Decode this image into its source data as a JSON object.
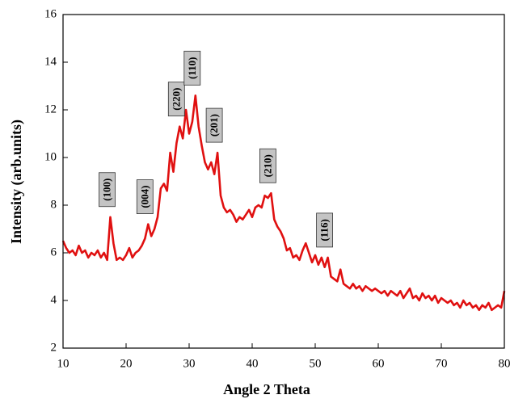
{
  "chart_data": {
    "type": "line",
    "x_label": "Angle 2 Theta",
    "y_label": "Intensity (arb.units)",
    "color": "#e01010",
    "xlim": [
      10,
      80
    ],
    "xticks": [
      10,
      20,
      30,
      40,
      50,
      60,
      70,
      80
    ],
    "ylim": [
      2,
      16
    ],
    "yticks": [
      2,
      4,
      6,
      8,
      10,
      12,
      14,
      16
    ],
    "x": [
      10,
      10.5,
      11,
      11.5,
      12,
      12.5,
      13,
      13.5,
      14,
      14.5,
      15,
      15.5,
      16,
      16.5,
      17,
      17.5,
      18,
      18.5,
      19,
      19.5,
      20,
      20.5,
      21,
      21.5,
      22,
      22.5,
      23,
      23.5,
      24,
      24.5,
      25,
      25.5,
      26,
      26.5,
      27,
      27.5,
      28,
      28.5,
      29,
      29.5,
      30,
      30.5,
      31,
      31.5,
      32,
      32.5,
      33,
      33.5,
      34,
      34.5,
      35,
      35.5,
      36,
      36.5,
      37,
      37.5,
      38,
      38.5,
      39,
      39.5,
      40,
      40.5,
      41,
      41.5,
      42,
      42.5,
      43,
      43.5,
      44,
      44.5,
      45,
      45.5,
      46,
      46.5,
      47,
      47.5,
      48,
      48.5,
      49,
      49.5,
      50,
      50.5,
      51,
      51.5,
      52,
      52.5,
      53,
      53.5,
      54,
      54.5,
      55,
      55.5,
      56,
      56.5,
      57,
      57.5,
      58,
      58.5,
      59,
      59.5,
      60,
      60.5,
      61,
      61.5,
      62,
      62.5,
      63,
      63.5,
      64,
      64.5,
      65,
      65.5,
      66,
      66.5,
      67,
      67.5,
      68,
      68.5,
      69,
      69.5,
      70,
      70.5,
      71,
      71.5,
      72,
      72.5,
      73,
      73.5,
      74,
      74.5,
      75,
      75.5,
      76,
      76.5,
      77,
      77.5,
      78,
      78.5,
      79,
      79.5,
      80
    ],
    "values": [
      6.5,
      6.2,
      6.0,
      6.1,
      5.9,
      6.3,
      6.0,
      6.1,
      5.8,
      6.0,
      5.9,
      6.1,
      5.8,
      6.0,
      5.7,
      7.5,
      6.4,
      5.7,
      5.8,
      5.7,
      5.9,
      6.2,
      5.8,
      6.0,
      6.1,
      6.3,
      6.6,
      7.2,
      6.7,
      7.0,
      7.5,
      8.7,
      8.9,
      8.6,
      10.2,
      9.4,
      10.6,
      11.3,
      10.8,
      12.0,
      11.0,
      11.5,
      12.6,
      11.3,
      10.5,
      9.8,
      9.5,
      9.8,
      9.3,
      10.2,
      8.4,
      7.9,
      7.7,
      7.8,
      7.6,
      7.3,
      7.5,
      7.4,
      7.6,
      7.8,
      7.5,
      7.9,
      8.0,
      7.9,
      8.4,
      8.3,
      8.5,
      7.4,
      7.1,
      6.9,
      6.6,
      6.1,
      6.2,
      5.8,
      5.9,
      5.7,
      6.1,
      6.4,
      6.0,
      5.6,
      5.9,
      5.5,
      5.8,
      5.4,
      5.8,
      5.0,
      4.9,
      4.8,
      5.3,
      4.7,
      4.6,
      4.5,
      4.7,
      4.5,
      4.6,
      4.4,
      4.6,
      4.5,
      4.4,
      4.5,
      4.4,
      4.3,
      4.4,
      4.2,
      4.4,
      4.3,
      4.2,
      4.4,
      4.1,
      4.3,
      4.5,
      4.1,
      4.2,
      4.0,
      4.3,
      4.1,
      4.2,
      4.0,
      4.2,
      3.9,
      4.1,
      4.0,
      3.9,
      4.0,
      3.8,
      3.9,
      3.7,
      4.0,
      3.8,
      3.9,
      3.7,
      3.8,
      3.6,
      3.8,
      3.7,
      3.9,
      3.6,
      3.7,
      3.8,
      3.7,
      4.4
    ],
    "annotations": [
      {
        "text": "(100)",
        "x": 17.5
      },
      {
        "text": "(004)",
        "x": 23.5
      },
      {
        "text": "(220)",
        "x": 28.5
      },
      {
        "text": "(110)",
        "x": 31
      },
      {
        "text": "(201)",
        "x": 34.5
      },
      {
        "text": "(210)",
        "x": 43
      },
      {
        "text": "(116)",
        "x": 52
      }
    ]
  }
}
